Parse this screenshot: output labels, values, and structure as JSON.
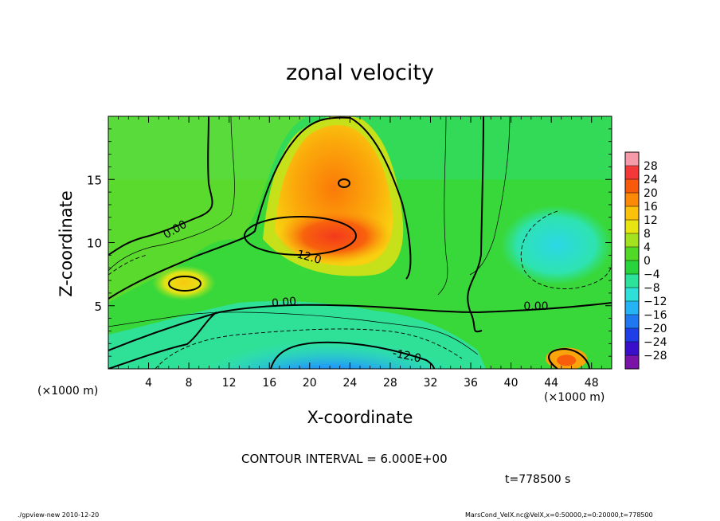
{
  "page": {
    "title": "zonal velocity",
    "contour_interval": "CONTOUR INTERVAL = 6.000E+00",
    "time_label": "t=778500 s",
    "footer_left": "./gpview-new  2010-12-20",
    "footer_right": "MarsCond_VelX.nc@VelX,x=0:50000,z=0:20000,t=778500"
  },
  "colors": {
    "scale": [
      "#7b14a8",
      "#3a0fcc",
      "#1f3ee8",
      "#1f78f0",
      "#25b3f5",
      "#2ee0d8",
      "#2de39b",
      "#29d33b",
      "#52d827",
      "#a2e21f",
      "#e7e412",
      "#fbc20c",
      "#fc8a08",
      "#f85a0c",
      "#f4383a",
      "#f59aa8"
    ]
  },
  "chart_data": {
    "type": "heatmap",
    "title": "zonal velocity",
    "xlabel": "X-coordinate",
    "ylabel": "Z-coordinate",
    "x_unit": "(×1000 m)",
    "y_unit": "(×1000 m)",
    "xlim": [
      0,
      50
    ],
    "ylim": [
      0,
      20
    ],
    "x_ticks": [
      4,
      8,
      12,
      16,
      20,
      24,
      28,
      32,
      36,
      40,
      44,
      48
    ],
    "y_ticks": [
      5,
      10,
      15
    ],
    "colorbar": {
      "levels": [
        28,
        24,
        20,
        16,
        12,
        8,
        4,
        0,
        -4,
        -8,
        -12,
        -16,
        -20,
        -24,
        -28
      ],
      "labels": [
        "28",
        "24",
        "20",
        "16",
        "12",
        "8",
        "4",
        "0",
        "−4",
        "−8",
        "−12",
        "−16",
        "−20",
        "−24",
        "−28"
      ]
    },
    "contour_labels": [
      "0.00",
      "12.0",
      "0.00",
      "0.00",
      "-12.0"
    ],
    "features": [
      {
        "x": 22.5,
        "z": 10.5,
        "value": 20
      },
      {
        "x": 23.5,
        "z": 14.8,
        "value": 14
      },
      {
        "x": 7.5,
        "z": 6.8,
        "value": 9
      },
      {
        "x": 22,
        "z": 1.2,
        "value": -16
      },
      {
        "x": 44.5,
        "z": 9.8,
        "value": -8
      },
      {
        "x": 45.5,
        "z": 0.8,
        "value": 14
      }
    ]
  }
}
